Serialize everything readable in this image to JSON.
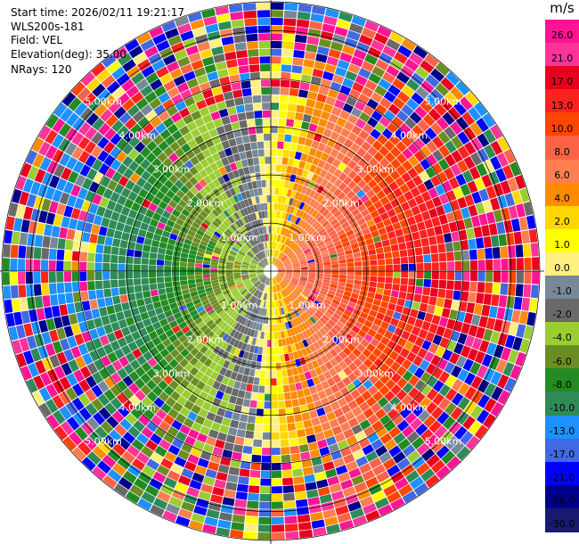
{
  "header": {
    "start_time": "Start time: 2026/02/11 19:21:17",
    "instrument": "WLS200s-181",
    "field": "Field: VEL",
    "elevation": "Elevation(deg): 35.00",
    "nrays": "NRays: 120"
  },
  "colorbar": {
    "unit": "m/s",
    "ticks": [
      "26.0",
      "21.0",
      "17.0",
      "13.0",
      "10.0",
      "8.0",
      "6.0",
      "4.0",
      "2.0",
      "1.0",
      "0.0",
      "-1.0",
      "-2.0",
      "-4.0",
      "-6.0",
      "-8.0",
      "-10.0",
      "-13.0",
      "-17.0",
      "-21.0",
      "-26.0",
      "-30.0"
    ],
    "colors": [
      "#ff1493",
      "#ff3399",
      "#e8001e",
      "#ff2020",
      "#ff4500",
      "#ff6347",
      "#ff7f50",
      "#ff8c00",
      "#ffd700",
      "#ffff00",
      "#ffef80",
      "#778899",
      "#696969",
      "#9acd32",
      "#6b8e23",
      "#228b22",
      "#2e8b57",
      "#1e90ff",
      "#4169e1",
      "#0000ff",
      "#00008b",
      "#191970"
    ]
  },
  "range_rings": {
    "labels": [
      "1.00km",
      "2.00km",
      "3.00km",
      "4.00km",
      "5.00km"
    ],
    "max_range_km": 5.6
  },
  "scan": {
    "nrays": 120,
    "wind_direction_deg": 90,
    "peak_speed_ms": 12
  }
}
